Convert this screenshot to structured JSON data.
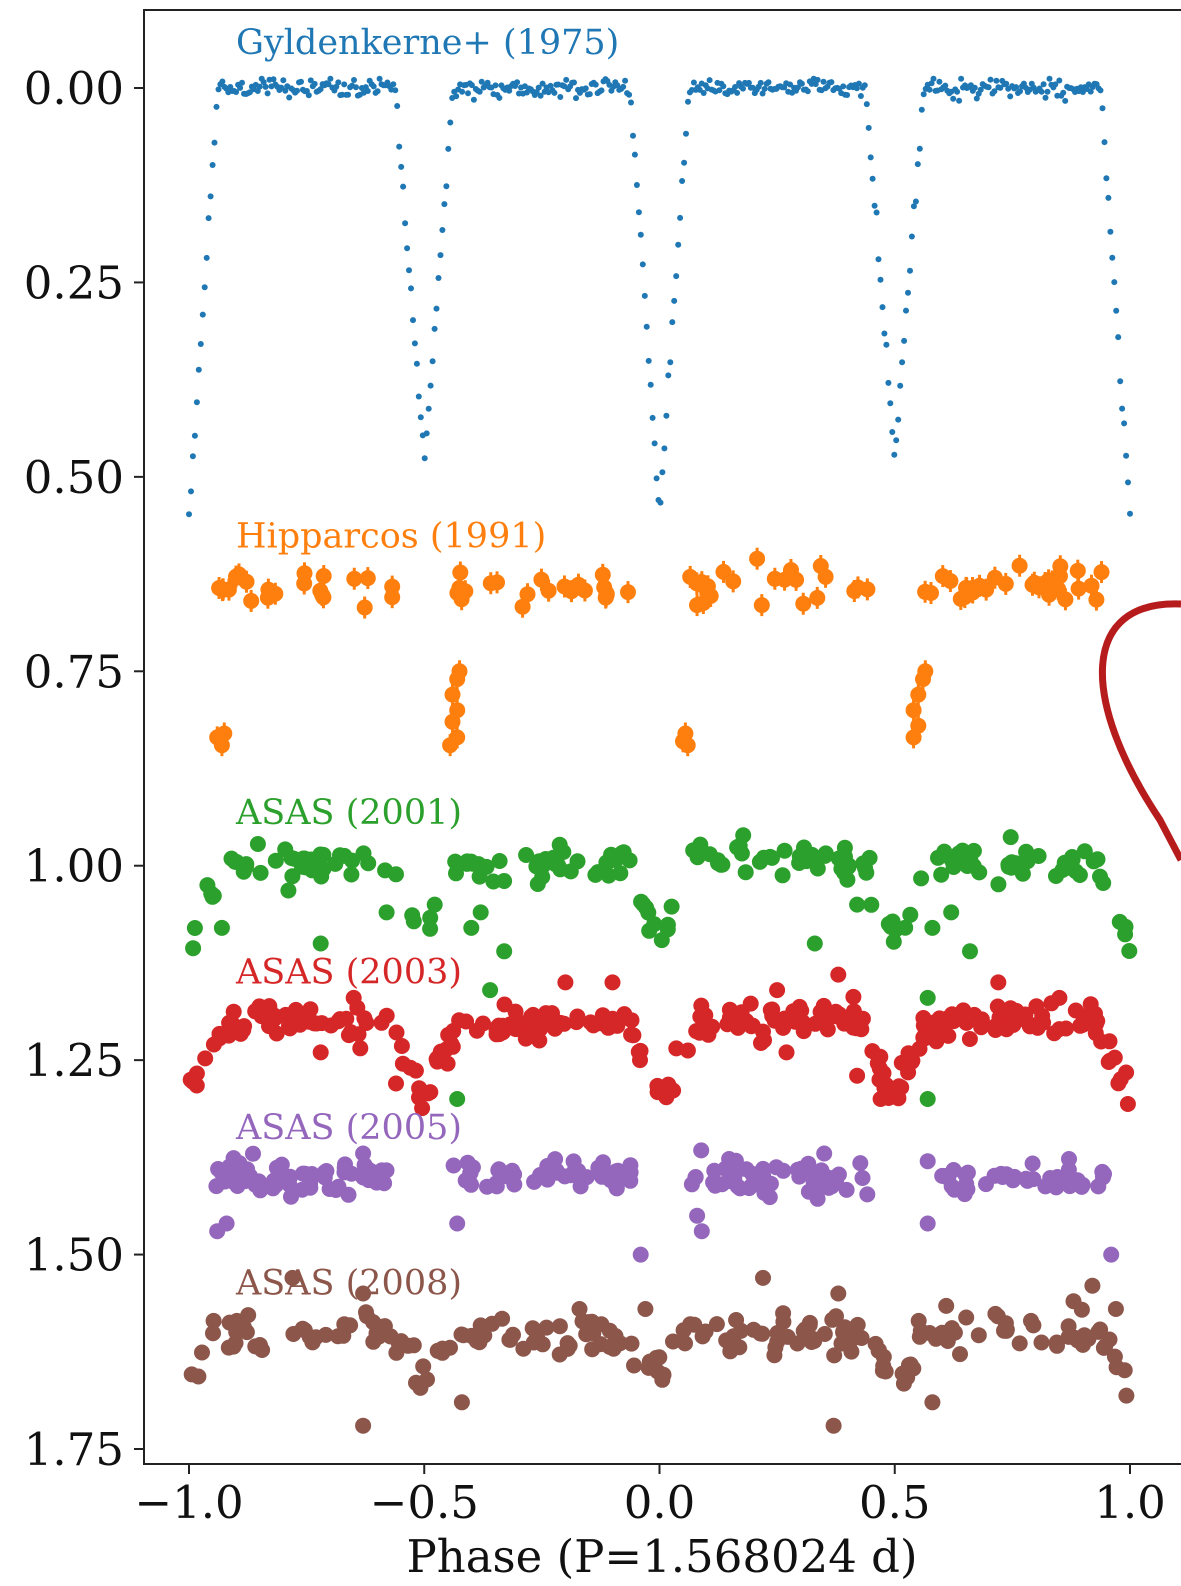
{
  "chart_data": {
    "type": "scatter",
    "xlabel": "Phase (P=1.568024 d)",
    "ylabel": "",
    "xlim": [
      -1.1,
      1.1
    ],
    "ylim": [
      1.75,
      -0.1
    ],
    "y_inverted": true,
    "grid": false,
    "x_ticks": [
      -1.0,
      -0.5,
      0.0,
      0.5,
      1.0
    ],
    "x_tick_labels": [
      "−1.0",
      "−0.5",
      "0.0",
      "0.5",
      "1.0"
    ],
    "y_ticks": [
      0.0,
      0.25,
      0.5,
      0.75,
      1.0,
      1.25,
      1.5,
      1.75
    ],
    "y_tick_labels": [
      "0.00",
      "0.25",
      "0.50",
      "0.75",
      "1.00",
      "1.25",
      "1.50",
      "1.75"
    ],
    "eclipse_phases": [
      -1.0,
      -0.5,
      0.0,
      0.5,
      1.0
    ],
    "series": [
      {
        "name": "Gyldenkerne+ (1975)",
        "color": "#1f77b4",
        "marker": "small-dot",
        "base": 0.0,
        "primary_depth": 0.55,
        "secondary_depth": 0.48,
        "eclipse_halfwidth": 0.062,
        "n_points": 480,
        "scatter": 0.006,
        "dip_points": [],
        "outliers": []
      },
      {
        "name": "Hipparcos (1991)",
        "color": "#ff7f0e",
        "marker": "large-dot-with-errorbar",
        "base": 0.64,
        "primary_depth": 0.2,
        "secondary_depth": 0.2,
        "eclipse_halfwidth": 0.035,
        "n_points": 130,
        "scatter": 0.012,
        "dip_points": [
          [
            -0.94,
            0.835
          ],
          [
            -0.93,
            0.845
          ],
          [
            -0.925,
            0.83
          ],
          [
            -0.44,
            0.78
          ],
          [
            -0.43,
            0.8
          ],
          [
            -0.44,
            0.815
          ],
          [
            -0.43,
            0.835
          ],
          [
            -0.445,
            0.845
          ],
          [
            -0.43,
            0.76
          ],
          [
            -0.425,
            0.75
          ],
          [
            0.05,
            0.84
          ],
          [
            0.055,
            0.83
          ],
          [
            0.06,
            0.845
          ],
          [
            0.54,
            0.8
          ],
          [
            0.55,
            0.78
          ],
          [
            0.55,
            0.82
          ],
          [
            0.54,
            0.835
          ],
          [
            0.56,
            0.76
          ],
          [
            0.565,
            0.75
          ]
        ],
        "outliers": []
      },
      {
        "name": "ASAS (2001)",
        "color": "#2ca02c",
        "marker": "large-dot",
        "base": 0.995,
        "primary_depth": 0.11,
        "secondary_depth": 0.1,
        "eclipse_halfwidth": 0.07,
        "n_points": 190,
        "scatter": 0.012,
        "dip_points": [],
        "outliers": [
          [
            -0.95,
            1.04
          ],
          [
            -0.93,
            1.08
          ],
          [
            -0.72,
            1.1
          ],
          [
            -0.58,
            1.06
          ],
          [
            -0.4,
            1.08
          ],
          [
            -0.38,
            1.06
          ],
          [
            -0.33,
            1.11
          ],
          [
            -0.36,
            1.16
          ],
          [
            0.33,
            1.1
          ],
          [
            0.42,
            1.05
          ],
          [
            0.58,
            1.08
          ],
          [
            0.62,
            1.06
          ],
          [
            0.66,
            1.11
          ],
          [
            0.57,
            1.17
          ],
          [
            -0.43,
            1.3
          ],
          [
            0.57,
            1.3
          ]
        ]
      },
      {
        "name": "ASAS (2003)",
        "color": "#d62728",
        "marker": "large-dot",
        "base": 1.2,
        "primary_depth": 0.1,
        "secondary_depth": 0.1,
        "eclipse_halfwidth": 0.075,
        "n_points": 300,
        "scatter": 0.011,
        "dip_points": [],
        "outliers": [
          [
            -0.72,
            1.24
          ],
          [
            -0.56,
            1.28
          ],
          [
            -0.1,
            1.15
          ],
          [
            0.27,
            1.24
          ],
          [
            0.42,
            1.27
          ],
          [
            0.47,
            1.3
          ],
          [
            0.25,
            1.16
          ],
          [
            0.38,
            1.14
          ],
          [
            0.72,
            1.15
          ],
          [
            -0.2,
            1.15
          ],
          [
            -0.65,
            1.17
          ],
          [
            0.85,
            1.17
          ]
        ]
      },
      {
        "name": "ASAS (2005)",
        "color": "#9467bd",
        "marker": "large-dot",
        "base": 1.4,
        "primary_depth": 0.06,
        "secondary_depth": 0.055,
        "eclipse_halfwidth": 0.06,
        "n_points": 260,
        "scatter": 0.012,
        "dip_points": [
          [
            -0.92,
            1.46
          ],
          [
            -0.94,
            1.47
          ],
          [
            0.08,
            1.45
          ],
          [
            0.09,
            1.47
          ],
          [
            -0.43,
            1.46
          ],
          [
            0.57,
            1.46
          ]
        ],
        "outliers": [
          [
            -0.04,
            1.5
          ],
          [
            0.96,
            1.5
          ],
          [
            -0.63,
            1.37
          ],
          [
            0.35,
            1.37
          ]
        ]
      },
      {
        "name": "ASAS (2008)",
        "color": "#8c564b",
        "marker": "large-dot",
        "base": 1.6,
        "primary_depth": 0.06,
        "secondary_depth": 0.06,
        "eclipse_halfwidth": 0.07,
        "n_points": 210,
        "scatter": 0.013,
        "dip_points": [],
        "outliers": [
          [
            -0.63,
            1.72
          ],
          [
            0.37,
            1.72
          ],
          [
            -0.42,
            1.69
          ],
          [
            0.58,
            1.69
          ],
          [
            -0.78,
            1.53
          ],
          [
            0.22,
            1.53
          ],
          [
            -0.63,
            1.55
          ],
          [
            0.38,
            1.55
          ],
          [
            -0.03,
            1.57
          ],
          [
            0.97,
            1.57
          ],
          [
            0.92,
            1.54
          ],
          [
            -0.17,
            1.57
          ],
          [
            0.88,
            1.56
          ]
        ]
      }
    ],
    "annotation": {
      "type": "curved-arrow",
      "color": "#b71c1c",
      "points_to": "ASAS (2001)"
    }
  }
}
